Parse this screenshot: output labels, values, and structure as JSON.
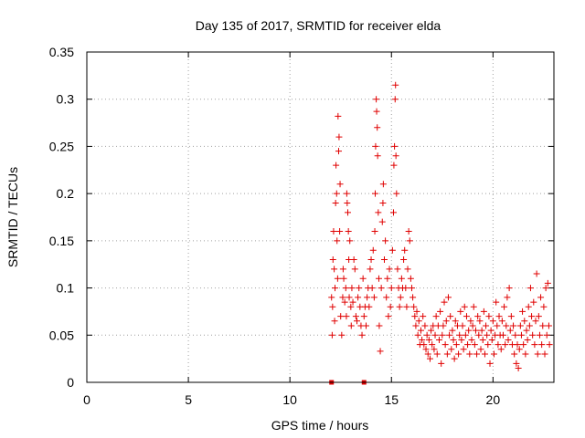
{
  "chart_data": {
    "type": "scatter",
    "title": "Day 135 of 2017, SRMTID for receiver elda",
    "xlabel": "GPS time / hours",
    "ylabel": "SRMTID / TECUs",
    "xlim": [
      0,
      23
    ],
    "ylim": [
      0,
      0.35
    ],
    "x_ticks": [
      "0",
      "5",
      "10",
      "15",
      "20"
    ],
    "x_tick_values": [
      0,
      5,
      10,
      15,
      20
    ],
    "y_ticks": [
      "0",
      "0.05",
      "0.1",
      "0.15",
      "0.2",
      "0.25",
      "0.3",
      "0.35"
    ],
    "y_tick_values": [
      0,
      0.05,
      0.1,
      0.15,
      0.2,
      0.25,
      0.3,
      0.35
    ],
    "grid": true,
    "marker": "plus",
    "color": "#e00000",
    "series": [
      {
        "name": "SRMTID",
        "points": [
          [
            12.05,
            0.09
          ],
          [
            12.08,
            0.05
          ],
          [
            12.1,
            0.08
          ],
          [
            12.12,
            0.13
          ],
          [
            12.15,
            0.16
          ],
          [
            12.18,
            0.12
          ],
          [
            12.2,
            0.065
          ],
          [
            12.22,
            0.1
          ],
          [
            12.25,
            0.19
          ],
          [
            12.27,
            0.23
          ],
          [
            12.3,
            0.2
          ],
          [
            12.32,
            0.15
          ],
          [
            12.35,
            0.11
          ],
          [
            12.37,
            0.282
          ],
          [
            12.4,
            0.245
          ],
          [
            12.42,
            0.26
          ],
          [
            12.45,
            0.16
          ],
          [
            12.47,
            0.21
          ],
          [
            12.5,
            0.07
          ],
          [
            12.55,
            0.05
          ],
          [
            12.6,
            0.09
          ],
          [
            12.62,
            0.12
          ],
          [
            12.65,
            0.11
          ],
          [
            12.7,
            0.085
          ],
          [
            12.75,
            0.1
          ],
          [
            12.78,
            0.07
          ],
          [
            12.8,
            0.2
          ],
          [
            12.82,
            0.19
          ],
          [
            12.85,
            0.18
          ],
          [
            12.88,
            0.16
          ],
          [
            12.9,
            0.13
          ],
          [
            12.92,
            0.09
          ],
          [
            12.95,
            0.15
          ],
          [
            13.0,
            0.08
          ],
          [
            13.02,
            0.06
          ],
          [
            13.05,
            0.1
          ],
          [
            13.1,
            0.085
          ],
          [
            13.15,
            0.13
          ],
          [
            13.2,
            0.12
          ],
          [
            13.25,
            0.07
          ],
          [
            13.3,
            0.065
          ],
          [
            13.35,
            0.09
          ],
          [
            13.4,
            0.1
          ],
          [
            13.45,
            0.08
          ],
          [
            13.5,
            0.06
          ],
          [
            13.55,
            0.05
          ],
          [
            13.6,
            0.11
          ],
          [
            13.65,
            0.07
          ],
          [
            13.7,
            0.08
          ],
          [
            13.75,
            0.06
          ],
          [
            13.8,
            0.09
          ],
          [
            13.85,
            0.1
          ],
          [
            13.9,
            0.08
          ],
          [
            13.95,
            0.12
          ],
          [
            14.0,
            0.13
          ],
          [
            14.05,
            0.1
          ],
          [
            14.1,
            0.14
          ],
          [
            14.15,
            0.09
          ],
          [
            14.18,
            0.16
          ],
          [
            14.2,
            0.2
          ],
          [
            14.22,
            0.25
          ],
          [
            14.25,
            0.3
          ],
          [
            14.27,
            0.287
          ],
          [
            14.3,
            0.27
          ],
          [
            14.32,
            0.24
          ],
          [
            14.35,
            0.18
          ],
          [
            14.38,
            0.11
          ],
          [
            14.4,
            0.06
          ],
          [
            14.45,
            0.033
          ],
          [
            14.5,
            0.1
          ],
          [
            14.55,
            0.17
          ],
          [
            14.58,
            0.19
          ],
          [
            14.6,
            0.21
          ],
          [
            14.65,
            0.13
          ],
          [
            14.7,
            0.15
          ],
          [
            14.75,
            0.09
          ],
          [
            14.8,
            0.11
          ],
          [
            14.85,
            0.07
          ],
          [
            14.9,
            0.12
          ],
          [
            14.95,
            0.08
          ],
          [
            15.0,
            0.1
          ],
          [
            15.05,
            0.14
          ],
          [
            15.1,
            0.18
          ],
          [
            15.12,
            0.23
          ],
          [
            15.15,
            0.25
          ],
          [
            15.18,
            0.3
          ],
          [
            15.2,
            0.315
          ],
          [
            15.22,
            0.24
          ],
          [
            15.25,
            0.2
          ],
          [
            15.3,
            0.12
          ],
          [
            15.35,
            0.1
          ],
          [
            15.4,
            0.08
          ],
          [
            15.45,
            0.09
          ],
          [
            15.5,
            0.11
          ],
          [
            15.55,
            0.1
          ],
          [
            15.6,
            0.13
          ],
          [
            15.65,
            0.14
          ],
          [
            15.7,
            0.1
          ],
          [
            15.75,
            0.08
          ],
          [
            15.8,
            0.12
          ],
          [
            15.85,
            0.16
          ],
          [
            15.9,
            0.15
          ],
          [
            15.95,
            0.11
          ],
          [
            16.0,
            0.1
          ],
          [
            16.05,
            0.09
          ],
          [
            16.1,
            0.08
          ],
          [
            16.15,
            0.07
          ],
          [
            16.2,
            0.06
          ],
          [
            16.25,
            0.075
          ],
          [
            16.3,
            0.05
          ],
          [
            16.35,
            0.065
          ],
          [
            16.4,
            0.04
          ],
          [
            16.45,
            0.055
          ],
          [
            16.5,
            0.045
          ],
          [
            16.55,
            0.07
          ],
          [
            16.6,
            0.04
          ],
          [
            16.65,
            0.06
          ],
          [
            16.7,
            0.035
          ],
          [
            16.75,
            0.05
          ],
          [
            16.8,
            0.03
          ],
          [
            16.85,
            0.045
          ],
          [
            16.9,
            0.025
          ],
          [
            16.95,
            0.055
          ],
          [
            17.0,
            0.04
          ],
          [
            17.05,
            0.06
          ],
          [
            17.1,
            0.035
          ],
          [
            17.15,
            0.05
          ],
          [
            17.2,
            0.07
          ],
          [
            17.25,
            0.03
          ],
          [
            17.3,
            0.06
          ],
          [
            17.35,
            0.045
          ],
          [
            17.4,
            0.075
          ],
          [
            17.45,
            0.02
          ],
          [
            17.5,
            0.05
          ],
          [
            17.55,
            0.06
          ],
          [
            17.6,
            0.085
          ],
          [
            17.65,
            0.04
          ],
          [
            17.7,
            0.065
          ],
          [
            17.75,
            0.03
          ],
          [
            17.8,
            0.09
          ],
          [
            17.85,
            0.05
          ],
          [
            17.9,
            0.07
          ],
          [
            17.95,
            0.035
          ],
          [
            18.0,
            0.055
          ],
          [
            18.05,
            0.045
          ],
          [
            18.1,
            0.025
          ],
          [
            18.15,
            0.065
          ],
          [
            18.2,
            0.04
          ],
          [
            18.25,
            0.06
          ],
          [
            18.3,
            0.03
          ],
          [
            18.35,
            0.05
          ],
          [
            18.4,
            0.075
          ],
          [
            18.45,
            0.045
          ],
          [
            18.5,
            0.06
          ],
          [
            18.55,
            0.035
          ],
          [
            18.6,
            0.08
          ],
          [
            18.65,
            0.05
          ],
          [
            18.7,
            0.07
          ],
          [
            18.75,
            0.04
          ],
          [
            18.8,
            0.055
          ],
          [
            18.85,
            0.03
          ],
          [
            18.9,
            0.065
          ],
          [
            18.95,
            0.045
          ],
          [
            19.0,
            0.06
          ],
          [
            19.05,
            0.08
          ],
          [
            19.1,
            0.04
          ],
          [
            19.15,
            0.055
          ],
          [
            19.2,
            0.03
          ],
          [
            19.25,
            0.07
          ],
          [
            19.3,
            0.05
          ],
          [
            19.35,
            0.065
          ],
          [
            19.4,
            0.035
          ],
          [
            19.45,
            0.055
          ],
          [
            19.5,
            0.045
          ],
          [
            19.55,
            0.075
          ],
          [
            19.6,
            0.03
          ],
          [
            19.65,
            0.06
          ],
          [
            19.7,
            0.05
          ],
          [
            19.75,
            0.04
          ],
          [
            19.8,
            0.07
          ],
          [
            19.85,
            0.02
          ],
          [
            19.9,
            0.055
          ],
          [
            19.95,
            0.045
          ],
          [
            20.0,
            0.065
          ],
          [
            20.05,
            0.03
          ],
          [
            20.1,
            0.05
          ],
          [
            20.15,
            0.085
          ],
          [
            20.2,
            0.06
          ],
          [
            20.25,
            0.04
          ],
          [
            20.3,
            0.07
          ],
          [
            20.35,
            0.05
          ],
          [
            20.4,
            0.035
          ],
          [
            20.45,
            0.065
          ],
          [
            20.5,
            0.05
          ],
          [
            20.55,
            0.08
          ],
          [
            20.6,
            0.04
          ],
          [
            20.65,
            0.06
          ],
          [
            20.7,
            0.09
          ],
          [
            20.75,
            0.045
          ],
          [
            20.8,
            0.1
          ],
          [
            20.85,
            0.055
          ],
          [
            20.9,
            0.07
          ],
          [
            20.95,
            0.04
          ],
          [
            21.0,
            0.06
          ],
          [
            21.05,
            0.03
          ],
          [
            21.1,
            0.05
          ],
          [
            21.15,
            0.02
          ],
          [
            21.2,
            0.04
          ],
          [
            21.25,
            0.015
          ],
          [
            21.3,
            0.035
          ],
          [
            21.35,
            0.06
          ],
          [
            21.4,
            0.05
          ],
          [
            21.45,
            0.075
          ],
          [
            21.5,
            0.04
          ],
          [
            21.55,
            0.065
          ],
          [
            21.6,
            0.03
          ],
          [
            21.65,
            0.055
          ],
          [
            21.7,
            0.045
          ],
          [
            21.75,
            0.08
          ],
          [
            21.8,
            0.06
          ],
          [
            21.85,
            0.1
          ],
          [
            21.9,
            0.07
          ],
          [
            21.95,
            0.05
          ],
          [
            22.0,
            0.085
          ],
          [
            22.05,
            0.04
          ],
          [
            22.1,
            0.065
          ],
          [
            22.15,
            0.115
          ],
          [
            22.2,
            0.03
          ],
          [
            22.25,
            0.07
          ],
          [
            22.3,
            0.05
          ],
          [
            22.35,
            0.09
          ],
          [
            22.4,
            0.04
          ],
          [
            22.45,
            0.06
          ],
          [
            22.5,
            0.08
          ],
          [
            22.55,
            0.03
          ],
          [
            22.6,
            0.1
          ],
          [
            22.65,
            0.05
          ],
          [
            22.7,
            0.105
          ],
          [
            22.75,
            0.06
          ],
          [
            22.78,
            0.04
          ]
        ]
      }
    ],
    "axis_markers": [
      {
        "x": 12.05,
        "y": 0
      },
      {
        "x": 13.65,
        "y": 0
      }
    ]
  }
}
